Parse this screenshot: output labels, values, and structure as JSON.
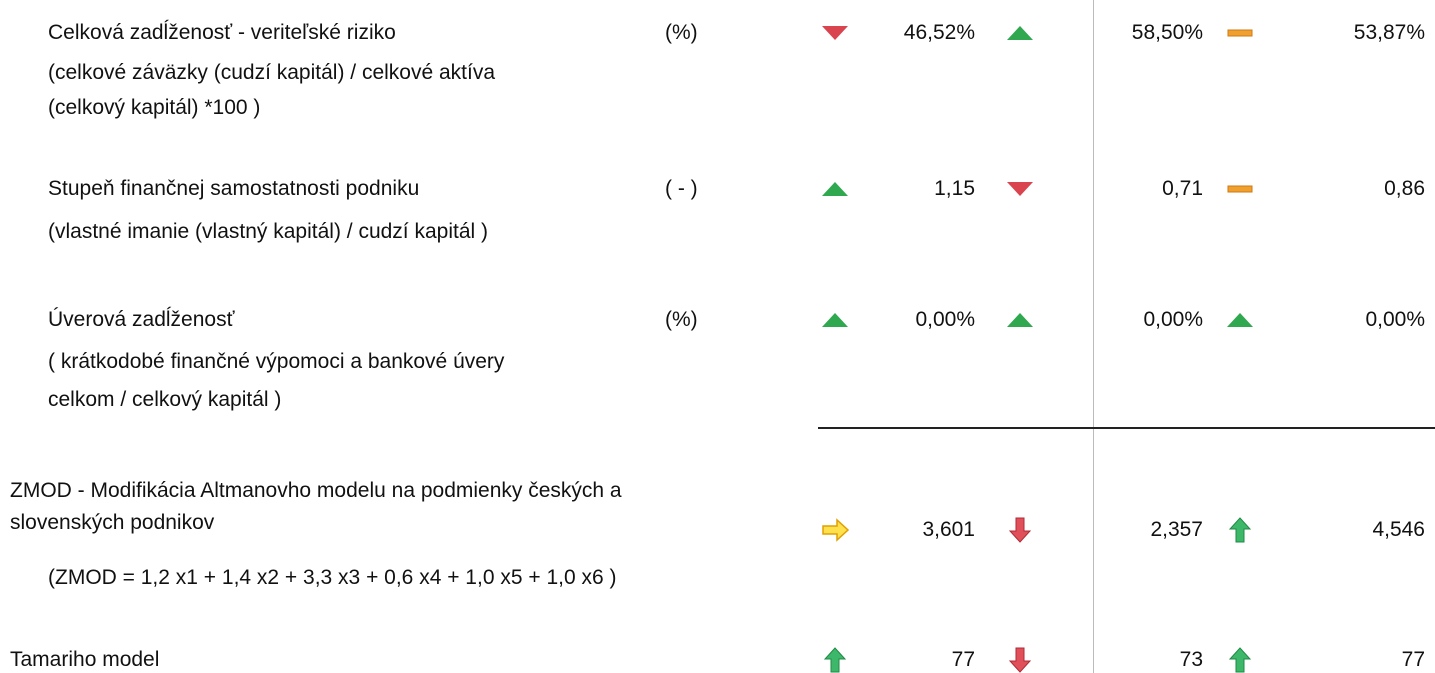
{
  "rows": [
    {
      "label": [
        "Celková zadĺženosť - veriteľské riziko",
        "(celkové záväzky (cudzí kapitál) / celkové aktíva",
        "(celkový kapitál) *100 )"
      ],
      "unit": "(%)",
      "values": [
        "46,52%",
        "58,50%",
        "53,87%"
      ]
    },
    {
      "label": [
        "Stupeň finančnej samostatnosti podniku",
        "(vlastné imanie (vlastný kapitál)  / cudzí kapitál )"
      ],
      "unit": "( - )",
      "values": [
        "1,15",
        "0,71",
        "0,86"
      ]
    },
    {
      "label": [
        "Úverová zadĺženosť",
        "( krátkodobé finančné výpomoci a bankové úvery",
        "celkom / celkový kapitál )"
      ],
      "unit": "(%)",
      "values": [
        "0,00%",
        "0,00%",
        "0,00%"
      ]
    },
    {
      "label": [
        "ZMOD - Modifikácia Altmanovho modelu na podmienky českých a",
        "slovenských podnikov",
        "(ZMOD = 1,2 x1 + 1,4 x2 + 3,3 x3 + 0,6 x4 + 1,0 x5 + 1,0 x6  )"
      ],
      "values": [
        "3,601",
        "2,357",
        "4,546"
      ]
    },
    {
      "label": [
        "Tamariho model"
      ],
      "values": [
        "77",
        "73",
        "77"
      ]
    }
  ]
}
